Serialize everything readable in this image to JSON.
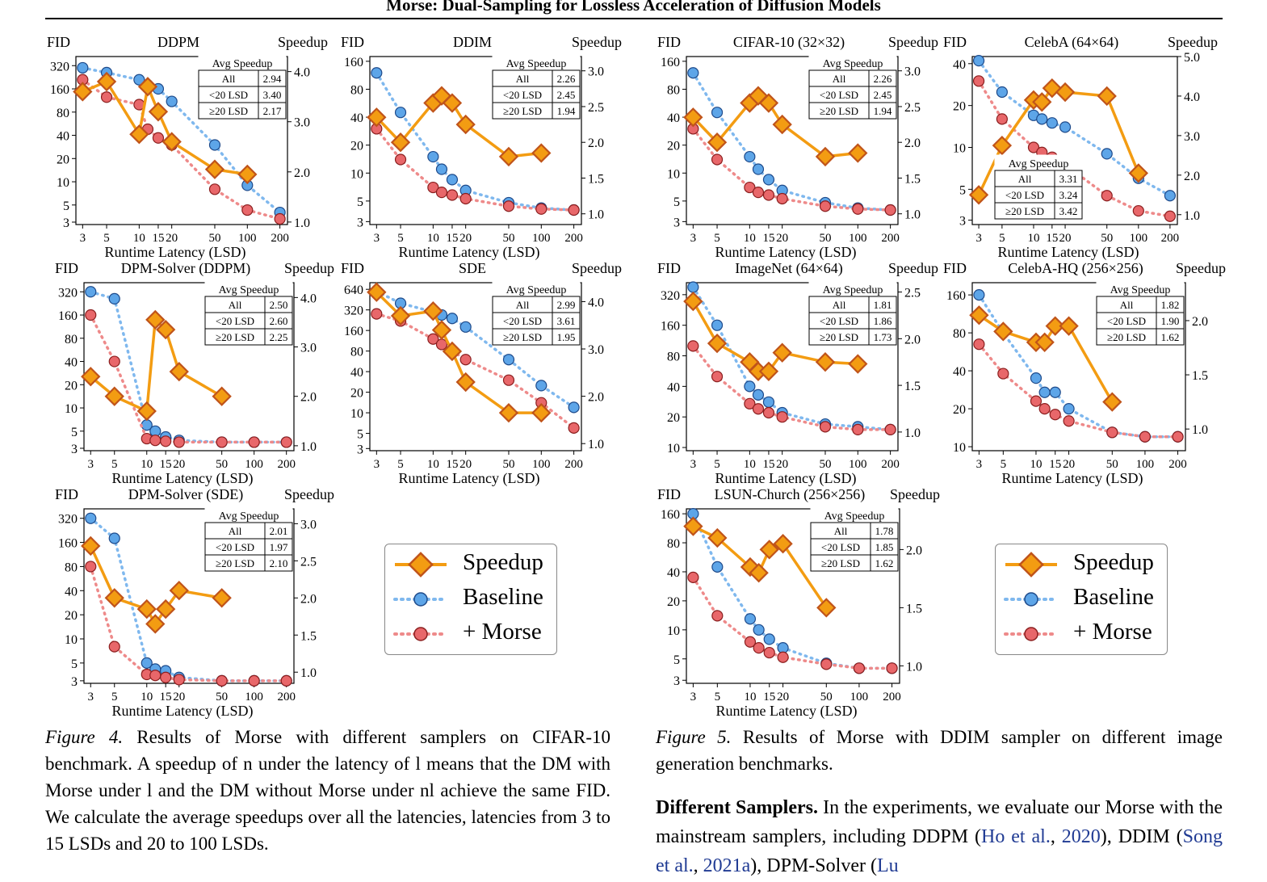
{
  "header": "Morse: Dual-Sampling for Lossless Acceleration of Diffusion Models",
  "colors": {
    "speedup": "#F39C12",
    "speedup_edge": "#C0541A",
    "baseline_fill": "#5DA5E8",
    "baseline_line": "#7FB8EE",
    "morse_fill": "#E8676A",
    "morse_line": "#EE8A8A"
  },
  "legend": {
    "speedup": "Speedup",
    "baseline": "Baseline",
    "morse": "+ Morse"
  },
  "table_header": "Avg Speedup",
  "table_rows": [
    "All",
    "<20 LSD",
    "≥20 LSD"
  ],
  "axis": {
    "left": "FID",
    "right": "Speedup",
    "x": "Runtime Latency (LSD)"
  },
  "figure4": {
    "label": "Figure 4.",
    "text": " Results of Morse with different samplers on CIFAR-10 benchmark. A speedup of n under the latency of l means that the DM with Morse under l and the DM without Morse under nl achieve the same FID. We calculate the average speedups over all the latencies, latencies from 3 to 15 LSDs and 20 to 100 LSDs."
  },
  "figure5": {
    "label": "Figure 5.",
    "text": " Results of Morse with DDIM sampler on different image generation benchmarks."
  },
  "paragraph": {
    "heading": "Different Samplers.",
    "text1": " In the experiments, we evaluate our Morse with the mainstream samplers, including DDPM (",
    "cite1a": "Ho et al.",
    "sep1": ", ",
    "cite1b": "2020",
    "text2": "), DDIM (",
    "cite2a": "Song et al.",
    "sep2": ", ",
    "cite2b": "2021a",
    "text3": "), DPM-Solver (",
    "cite3": "Lu"
  },
  "chart_data": [
    {
      "type": "line",
      "title": "DDPM",
      "xlabel": "Runtime Latency (LSD)",
      "ylabel": "FID",
      "y2label": "Speedup",
      "x_ticks": [
        3,
        5,
        10,
        15,
        20,
        50,
        100,
        200
      ],
      "y_ticks": [
        3,
        5,
        10,
        20,
        40,
        80,
        160,
        320
      ],
      "ylim": [
        3,
        420
      ],
      "y2_ticks": [
        1.0,
        2.0,
        3.0,
        4.0
      ],
      "y2lim": [
        0.95,
        4.3
      ],
      "table": [
        "2.94",
        "3.40",
        "2.17"
      ],
      "series": [
        {
          "name": "Baseline",
          "x": [
            3,
            5,
            10,
            12,
            15,
            20,
            50,
            100,
            200
          ],
          "values": [
            300,
            260,
            210,
            180,
            160,
            110,
            30,
            9,
            4
          ]
        },
        {
          "name": "+ Morse",
          "x": [
            3,
            5,
            10,
            12,
            15,
            20,
            50,
            100,
            200
          ],
          "values": [
            210,
            125,
            100,
            48,
            37,
            30,
            8,
            4.3,
            3.3
          ]
        },
        {
          "name": "Speedup",
          "x": [
            3,
            5,
            10,
            12,
            15,
            20,
            50,
            100
          ],
          "values": [
            3.6,
            3.8,
            2.75,
            3.7,
            3.2,
            2.6,
            2.05,
            1.95
          ]
        }
      ]
    },
    {
      "type": "line",
      "title": "DDIM",
      "xlabel": "Runtime Latency (LSD)",
      "ylabel": "FID",
      "y2label": "Speedup",
      "x_ticks": [
        3,
        5,
        10,
        15,
        20,
        50,
        100,
        200
      ],
      "y_ticks": [
        3,
        5,
        10,
        20,
        40,
        80,
        160
      ],
      "ylim": [
        3,
        180
      ],
      "y2_ticks": [
        1.0,
        1.5,
        2.0,
        2.5,
        3.0
      ],
      "y2lim": [
        0.85,
        3.2
      ],
      "table": [
        "2.26",
        "2.45",
        "1.94"
      ],
      "series": [
        {
          "name": "Baseline",
          "x": [
            3,
            5,
            10,
            12,
            15,
            20,
            50,
            100,
            200
          ],
          "values": [
            120,
            45,
            15,
            11,
            8.5,
            6.5,
            4.8,
            4.2,
            4.0
          ]
        },
        {
          "name": "+ Morse",
          "x": [
            3,
            5,
            10,
            12,
            15,
            20,
            50,
            100,
            200
          ],
          "values": [
            30,
            14,
            7,
            6.2,
            5.8,
            5.3,
            4.4,
            4.1,
            4.0
          ]
        },
        {
          "name": "Speedup",
          "x": [
            3,
            5,
            10,
            12,
            15,
            20,
            50,
            100
          ],
          "values": [
            2.35,
            2.0,
            2.55,
            2.65,
            2.55,
            2.25,
            1.8,
            1.85
          ]
        }
      ]
    },
    {
      "type": "line",
      "title": "CIFAR-10 (32×32)",
      "xlabel": "Runtime Latency (LSD)",
      "ylabel": "FID",
      "y2label": "Speedup",
      "x_ticks": [
        3,
        5,
        10,
        15,
        20,
        50,
        100,
        200
      ],
      "y_ticks": [
        3,
        5,
        10,
        20,
        40,
        80,
        160
      ],
      "ylim": [
        3,
        180
      ],
      "y2_ticks": [
        1.0,
        1.5,
        2.0,
        2.5,
        3.0
      ],
      "y2lim": [
        0.85,
        3.2
      ],
      "table": [
        "2.26",
        "2.45",
        "1.94"
      ],
      "series": [
        {
          "name": "Baseline",
          "x": [
            3,
            5,
            10,
            12,
            15,
            20,
            50,
            100,
            200
          ],
          "values": [
            120,
            45,
            15,
            11,
            8.5,
            6.5,
            4.8,
            4.2,
            4.0
          ]
        },
        {
          "name": "+ Morse",
          "x": [
            3,
            5,
            10,
            12,
            15,
            20,
            50,
            100,
            200
          ],
          "values": [
            30,
            14,
            7,
            6.2,
            5.8,
            5.3,
            4.4,
            4.1,
            4.0
          ]
        },
        {
          "name": "Speedup",
          "x": [
            3,
            5,
            10,
            12,
            15,
            20,
            50,
            100
          ],
          "values": [
            2.35,
            2.0,
            2.55,
            2.65,
            2.55,
            2.25,
            1.8,
            1.85
          ]
        }
      ]
    },
    {
      "type": "line",
      "title": "CelebA (64×64)",
      "xlabel": "Runtime Latency (LSD)",
      "ylabel": "FID",
      "y2label": "Speedup",
      "x_ticks": [
        3,
        5,
        10,
        15,
        20,
        50,
        100,
        200
      ],
      "y_ticks": [
        3,
        5,
        10,
        20,
        40
      ],
      "ylim": [
        3,
        45
      ],
      "y2_ticks": [
        1.0,
        2.0,
        3.0,
        4.0,
        5.0
      ],
      "y2lim": [
        0.75,
        5.0
      ],
      "table": [
        "3.31",
        "3.24",
        "3.42"
      ],
      "series": [
        {
          "name": "Baseline",
          "x": [
            3,
            5,
            10,
            12,
            15,
            20,
            50,
            100,
            200
          ],
          "values": [
            42,
            25,
            17,
            16,
            15,
            14,
            9,
            6,
            4.5
          ]
        },
        {
          "name": "+ Morse",
          "x": [
            3,
            5,
            10,
            12,
            15,
            20,
            50,
            100,
            200
          ],
          "values": [
            30,
            16,
            10,
            9.2,
            8.5,
            7.5,
            4.5,
            3.5,
            3.2
          ]
        },
        {
          "name": "Speedup",
          "x": [
            3,
            5,
            10,
            12,
            15,
            20,
            50,
            100
          ],
          "values": [
            1.5,
            2.75,
            3.9,
            3.85,
            4.2,
            4.1,
            4.0,
            2.05
          ]
        }
      ]
    },
    {
      "type": "line",
      "title": "DPM-Solver (DDPM)",
      "xlabel": "Runtime Latency (LSD)",
      "ylabel": "FID",
      "y2label": "Speedup",
      "x_ticks": [
        3,
        5,
        10,
        15,
        20,
        50,
        100,
        200
      ],
      "y_ticks": [
        3,
        5,
        10,
        20,
        40,
        80,
        160,
        320
      ],
      "ylim": [
        3,
        420
      ],
      "y2_ticks": [
        1.0,
        2.0,
        3.0,
        4.0
      ],
      "y2lim": [
        0.9,
        4.3
      ],
      "table": [
        "2.50",
        "2.60",
        "2.25"
      ],
      "series": [
        {
          "name": "Baseline",
          "x": [
            3,
            5,
            10,
            12,
            15,
            20,
            50,
            100,
            200
          ],
          "values": [
            320,
            260,
            6,
            5,
            4.2,
            3.8,
            3.6,
            3.6,
            3.6
          ]
        },
        {
          "name": "+ Morse",
          "x": [
            3,
            5,
            10,
            12,
            15,
            20,
            50,
            100,
            200
          ],
          "values": [
            160,
            40,
            4,
            3.8,
            3.7,
            3.6,
            3.6,
            3.6,
            3.6
          ]
        },
        {
          "name": "Speedup",
          "x": [
            3,
            5,
            10,
            12,
            15,
            20,
            50
          ],
          "values": [
            2.4,
            2.0,
            1.7,
            3.55,
            3.35,
            2.5,
            2.0
          ]
        }
      ]
    },
    {
      "type": "line",
      "title": "SDE",
      "xlabel": "Runtime Latency (LSD)",
      "ylabel": "FID",
      "y2label": "Speedup",
      "x_ticks": [
        3,
        5,
        10,
        15,
        20,
        50,
        100,
        200
      ],
      "y_ticks": [
        3,
        5,
        10,
        20,
        40,
        80,
        160,
        320,
        640
      ],
      "ylim": [
        3,
        800
      ],
      "y2_ticks": [
        1.0,
        2.0,
        3.0,
        4.0
      ],
      "y2lim": [
        0.85,
        4.4
      ],
      "table": [
        "2.99",
        "3.61",
        "1.95"
      ],
      "series": [
        {
          "name": "Baseline",
          "x": [
            3,
            5,
            10,
            12,
            15,
            20,
            50,
            100,
            200
          ],
          "values": [
            600,
            400,
            300,
            270,
            240,
            180,
            60,
            25,
            12
          ]
        },
        {
          "name": "+ Morse",
          "x": [
            3,
            5,
            10,
            12,
            15,
            20,
            50,
            100,
            200
          ],
          "values": [
            280,
            220,
            120,
            100,
            80,
            60,
            30,
            14,
            6
          ]
        },
        {
          "name": "Speedup",
          "x": [
            3,
            5,
            10,
            12,
            15,
            20,
            50,
            100
          ],
          "values": [
            4.2,
            3.7,
            3.8,
            3.4,
            2.95,
            2.3,
            1.65,
            1.65
          ]
        }
      ]
    },
    {
      "type": "line",
      "title": "ImageNet (64×64)",
      "xlabel": "Runtime Latency (LSD)",
      "ylabel": "FID",
      "y2label": "Speedup",
      "x_ticks": [
        3,
        5,
        10,
        15,
        20,
        50,
        100,
        200
      ],
      "y_ticks": [
        10,
        20,
        40,
        80,
        160,
        320
      ],
      "ylim": [
        10,
        420
      ],
      "y2_ticks": [
        1.0,
        1.5,
        2.0,
        2.5
      ],
      "y2lim": [
        0.8,
        2.6
      ],
      "table": [
        "1.81",
        "1.86",
        "1.73"
      ],
      "series": [
        {
          "name": "Baseline",
          "x": [
            3,
            5,
            10,
            12,
            15,
            20,
            50,
            100,
            200
          ],
          "values": [
            380,
            160,
            40,
            33,
            28,
            22,
            17,
            16,
            15
          ]
        },
        {
          "name": "+ Morse",
          "x": [
            3,
            5,
            10,
            12,
            15,
            20,
            50,
            100,
            200
          ],
          "values": [
            100,
            50,
            27,
            24,
            22,
            20,
            16,
            15,
            15
          ]
        },
        {
          "name": "Speedup",
          "x": [
            3,
            5,
            10,
            12,
            15,
            20,
            50,
            100
          ],
          "values": [
            2.4,
            1.95,
            1.75,
            1.65,
            1.65,
            1.85,
            1.75,
            1.73
          ]
        }
      ]
    },
    {
      "type": "line",
      "title": "CelebA-HQ (256×256)",
      "xlabel": "Runtime Latency (LSD)",
      "ylabel": "FID",
      "y2label": "Speedup",
      "x_ticks": [
        3,
        5,
        10,
        15,
        20,
        50,
        100,
        200
      ],
      "y_ticks": [
        10,
        20,
        40,
        80,
        160
      ],
      "ylim": [
        10,
        200
      ],
      "y2_ticks": [
        1.0,
        1.5,
        2.0
      ],
      "y2lim": [
        0.8,
        2.35
      ],
      "table": [
        "1.82",
        "1.90",
        "1.62"
      ],
      "series": [
        {
          "name": "Baseline",
          "x": [
            3,
            5,
            10,
            12,
            15,
            20,
            50,
            100,
            200
          ],
          "values": [
            160,
            80,
            35,
            27,
            27,
            20,
            13,
            12,
            12
          ]
        },
        {
          "name": "+ Morse",
          "x": [
            3,
            5,
            10,
            12,
            15,
            20,
            50,
            100,
            200
          ],
          "values": [
            65,
            38,
            23,
            20,
            18,
            16,
            13,
            12,
            12
          ]
        },
        {
          "name": "Speedup",
          "x": [
            3,
            5,
            10,
            12,
            15,
            20,
            50
          ],
          "values": [
            2.05,
            1.9,
            1.8,
            1.8,
            1.95,
            1.95,
            1.25
          ]
        }
      ]
    },
    {
      "type": "line",
      "title": "DPM-Solver (SDE)",
      "xlabel": "Runtime Latency (LSD)",
      "ylabel": "FID",
      "y2label": "Speedup",
      "x_ticks": [
        3,
        5,
        10,
        15,
        20,
        50,
        100,
        200
      ],
      "y_ticks": [
        3,
        5,
        10,
        20,
        40,
        80,
        160,
        320
      ],
      "ylim": [
        3,
        420
      ],
      "y2_ticks": [
        1.0,
        1.5,
        2.0,
        2.5,
        3.0
      ],
      "y2lim": [
        0.85,
        3.2
      ],
      "table": [
        "2.01",
        "1.97",
        "2.10"
      ],
      "series": [
        {
          "name": "Baseline",
          "x": [
            3,
            5,
            10,
            12,
            15,
            20,
            50,
            100,
            200
          ],
          "values": [
            320,
            180,
            5,
            4.2,
            4.0,
            3.3,
            3.0,
            3.0,
            3.0
          ]
        },
        {
          "name": "+ Morse",
          "x": [
            3,
            5,
            10,
            12,
            15,
            20,
            50,
            100,
            200
          ],
          "values": [
            80,
            8,
            3.6,
            3.5,
            3.3,
            3.1,
            3.0,
            3.0,
            3.0
          ]
        },
        {
          "name": "Speedup",
          "x": [
            3,
            5,
            10,
            12,
            15,
            20,
            50
          ],
          "values": [
            2.7,
            2.0,
            1.85,
            1.65,
            1.85,
            2.1,
            2.0
          ]
        }
      ]
    },
    {
      "type": "line",
      "title": "LSUN-Church (256×256)",
      "xlabel": "Runtime Latency (LSD)",
      "ylabel": "FID",
      "y2label": "Speedup",
      "x_ticks": [
        3,
        5,
        10,
        15,
        20,
        50,
        100,
        200
      ],
      "y_ticks": [
        3,
        5,
        10,
        20,
        40,
        80,
        160
      ],
      "ylim": [
        3,
        180
      ],
      "y2_ticks": [
        1.0,
        1.5,
        2.0
      ],
      "y2lim": [
        0.85,
        2.35
      ],
      "table": [
        "1.78",
        "1.85",
        "1.62"
      ],
      "series": [
        {
          "name": "Baseline",
          "x": [
            3,
            5,
            10,
            12,
            15,
            20,
            50,
            100,
            200
          ],
          "values": [
            160,
            45,
            13,
            10,
            8,
            6.5,
            4.5,
            4,
            4
          ]
        },
        {
          "name": "+ Morse",
          "x": [
            3,
            5,
            10,
            12,
            15,
            20,
            50,
            100,
            200
          ],
          "values": [
            35,
            14,
            7.5,
            6.5,
            5.8,
            5.2,
            4.4,
            4,
            4
          ]
        },
        {
          "name": "Speedup",
          "x": [
            3,
            5,
            10,
            12,
            15,
            20,
            50
          ],
          "values": [
            2.2,
            2.1,
            1.85,
            1.8,
            2.0,
            2.05,
            1.5
          ]
        }
      ]
    }
  ]
}
